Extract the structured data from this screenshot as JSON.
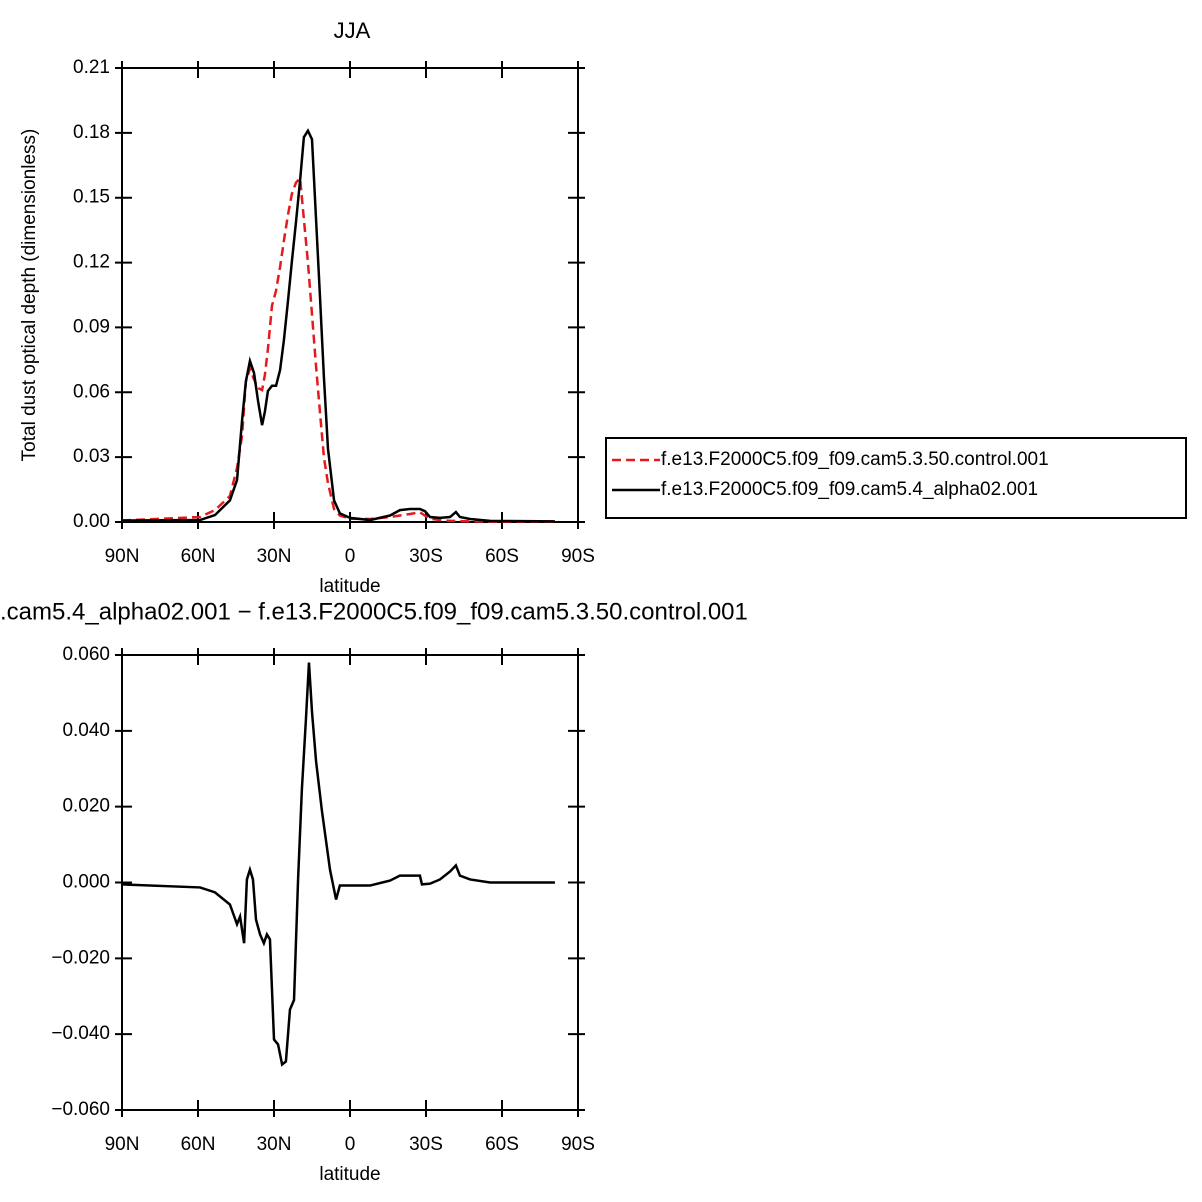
{
  "chart_data": [
    {
      "type": "line",
      "title": "JJA",
      "ylabel": "Total dust optical depth (dimensionless)",
      "xlabel": "latitude",
      "x": [
        90,
        59.2,
        53.3,
        47.4,
        44.6,
        42.6,
        41.1,
        39.5,
        37.9,
        36.3,
        34.7,
        33.6,
        32.4,
        30.8,
        29.2,
        27.6,
        26.1,
        24.5,
        22.9,
        21.3,
        19.7,
        18.2,
        16.6,
        15.0,
        13.4,
        11.8,
        10.3,
        8.7,
        6.3,
        4.0,
        0,
        -7.9,
        -15.8,
        -19.7,
        -23.7,
        -27.6,
        -29.6,
        -31.6,
        -35.5,
        -39.5,
        -41.8,
        -43.4,
        -47.4,
        -55.3,
        -80.9
      ],
      "series": [
        {
          "name": "f.e13.F2000C5.f09_f09.cam5.3.50.control.001",
          "color": "#e41a1c",
          "line_style": "dashed",
          "values": [
            0.0007,
            0.0023,
            0.0055,
            0.012,
            0.025,
            0.04,
            0.065,
            0.071,
            0.066,
            0.062,
            0.061,
            0.068,
            0.08,
            0.1,
            0.107,
            0.118,
            0.13,
            0.142,
            0.152,
            0.157,
            0.159,
            0.14,
            0.12,
            0.096,
            0.072,
            0.05,
            0.03,
            0.018,
            0.006,
            0.003,
            0.0015,
            0.0014,
            0.0023,
            0.003,
            0.0037,
            0.0045,
            0.003,
            0.0015,
            0.0009,
            0.0005,
            0.0005,
            0.0004,
            0.0003,
            0.0002,
            0.0002
          ]
        },
        {
          "name": "f.e13.F2000C5.f09_f09.cam5.4_alpha02.001",
          "color": "#000000",
          "line_style": "solid",
          "values": [
            0.0007,
            0.0009,
            0.0032,
            0.01,
            0.0194,
            0.047,
            0.065,
            0.0745,
            0.069,
            0.056,
            0.0448,
            0.051,
            0.0606,
            0.063,
            0.063,
            0.0703,
            0.084,
            0.102,
            0.121,
            0.139,
            0.158,
            0.178,
            0.181,
            0.177,
            0.14,
            0.103,
            0.067,
            0.034,
            0.01,
            0.004,
            0.0019,
            0.0009,
            0.003,
            0.0055,
            0.006,
            0.006,
            0.005,
            0.0023,
            0.0019,
            0.0023,
            0.0046,
            0.0023,
            0.0014,
            0.0005,
            0.0003
          ]
        }
      ],
      "xlim": [
        90,
        -90
      ],
      "xticks": [
        {
          "value": 90,
          "label": "90N"
        },
        {
          "value": 60,
          "label": "60N"
        },
        {
          "value": 30,
          "label": "30N"
        },
        0,
        {
          "value": -30,
          "label": "30S"
        },
        {
          "value": -60,
          "label": "60S"
        },
        {
          "value": -90,
          "label": "90S"
        }
      ],
      "ylim": [
        0,
        0.21
      ],
      "yticks": [
        {
          "value": 0,
          "label": "0.00"
        },
        0.03,
        0.06,
        0.09,
        0.12,
        0.15,
        0.18,
        0.21
      ],
      "legend": "right"
    },
    {
      "type": "line",
      "title": ".cam5.4_alpha02.001 − f.e13.F2000C5.f09_f09.cam5.3.50.control.001",
      "xlabel": "latitude",
      "x": [
        90,
        59.2,
        53.3,
        47.4,
        44.6,
        43.4,
        41.8,
        40.7,
        39.5,
        38.3,
        37.1,
        35.5,
        34.0,
        32.8,
        31.6,
        30.0,
        28.4,
        26.8,
        25.3,
        23.7,
        22.1,
        20.5,
        19.0,
        17.4,
        16.2,
        15.0,
        13.4,
        11.1,
        7.9,
        5.5,
        4.0,
        0,
        -7.9,
        -15.8,
        -19.7,
        -27.6,
        -28.4,
        -31.6,
        -35.5,
        -39.5,
        -41.8,
        -43.4,
        -47.4,
        -55.3,
        -80.9
      ],
      "values": [
        -0.0005,
        -0.0013,
        -0.0026,
        -0.0058,
        -0.011,
        -0.009,
        -0.016,
        0.0008,
        0.0034,
        0.0008,
        -0.0098,
        -0.0137,
        -0.016,
        -0.0137,
        -0.015,
        -0.0414,
        -0.0427,
        -0.048,
        -0.0472,
        -0.0335,
        -0.031,
        0.0008,
        0.0245,
        0.043,
        0.058,
        0.045,
        0.032,
        0.019,
        0.0034,
        -0.0045,
        -0.0008,
        -0.0008,
        -0.0008,
        0.0005,
        0.0018,
        0.0018,
        -0.0005,
        -0.0003,
        0.0008,
        0.0029,
        0.0045,
        0.0018,
        0.0008,
        0,
        0
      ],
      "color": "#000000",
      "xlim": [
        90,
        -90
      ],
      "xticks": [
        {
          "value": 90,
          "label": "90N"
        },
        {
          "value": 60,
          "label": "60N"
        },
        {
          "value": 30,
          "label": "30N"
        },
        0,
        {
          "value": -30,
          "label": "30S"
        },
        {
          "value": -60,
          "label": "60S"
        },
        {
          "value": -90,
          "label": "90S"
        }
      ],
      "ylim": [
        -0.06,
        0.06
      ],
      "yticks": [
        {
          "value": -0.06,
          "label": "−0.060"
        },
        {
          "value": -0.04,
          "label": "−0.040"
        },
        {
          "value": -0.02,
          "label": "−0.020"
        },
        {
          "value": 0,
          "label": "0.000"
        },
        {
          "value": 0.02,
          "label": "0.020"
        },
        {
          "value": 0.04,
          "label": "0.040"
        },
        {
          "value": 0.06,
          "label": "0.060"
        }
      ]
    }
  ]
}
